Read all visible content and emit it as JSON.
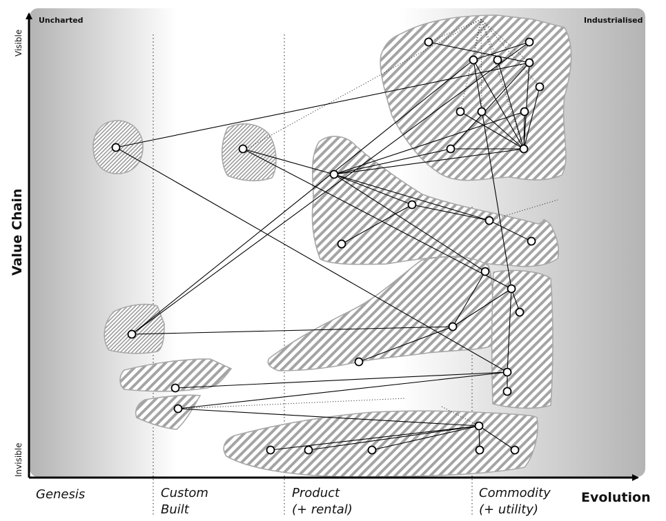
{
  "map": {
    "corner_left": "Uncharted",
    "corner_right": "Industrialised",
    "y_axis_label": "Value Chain",
    "y_top": "Visible",
    "y_bottom": "Invisible",
    "x_axis_label": "Evolution",
    "phases": [
      {
        "line1": "Genesis",
        "line2": ""
      },
      {
        "line1": "Custom",
        "line2": "Built"
      },
      {
        "line1": "Product",
        "line2": "(+ rental)"
      },
      {
        "line1": "Commodity",
        "line2": "(+ utility)"
      }
    ]
  },
  "colors": {
    "line": "#000000",
    "node_fill": "#ffffff",
    "hatch": "#9a9a9a",
    "blob_edge": "#a8a8a8",
    "gradient_dark": "#b4b4b4",
    "gradient_light": "#ffffff"
  }
}
